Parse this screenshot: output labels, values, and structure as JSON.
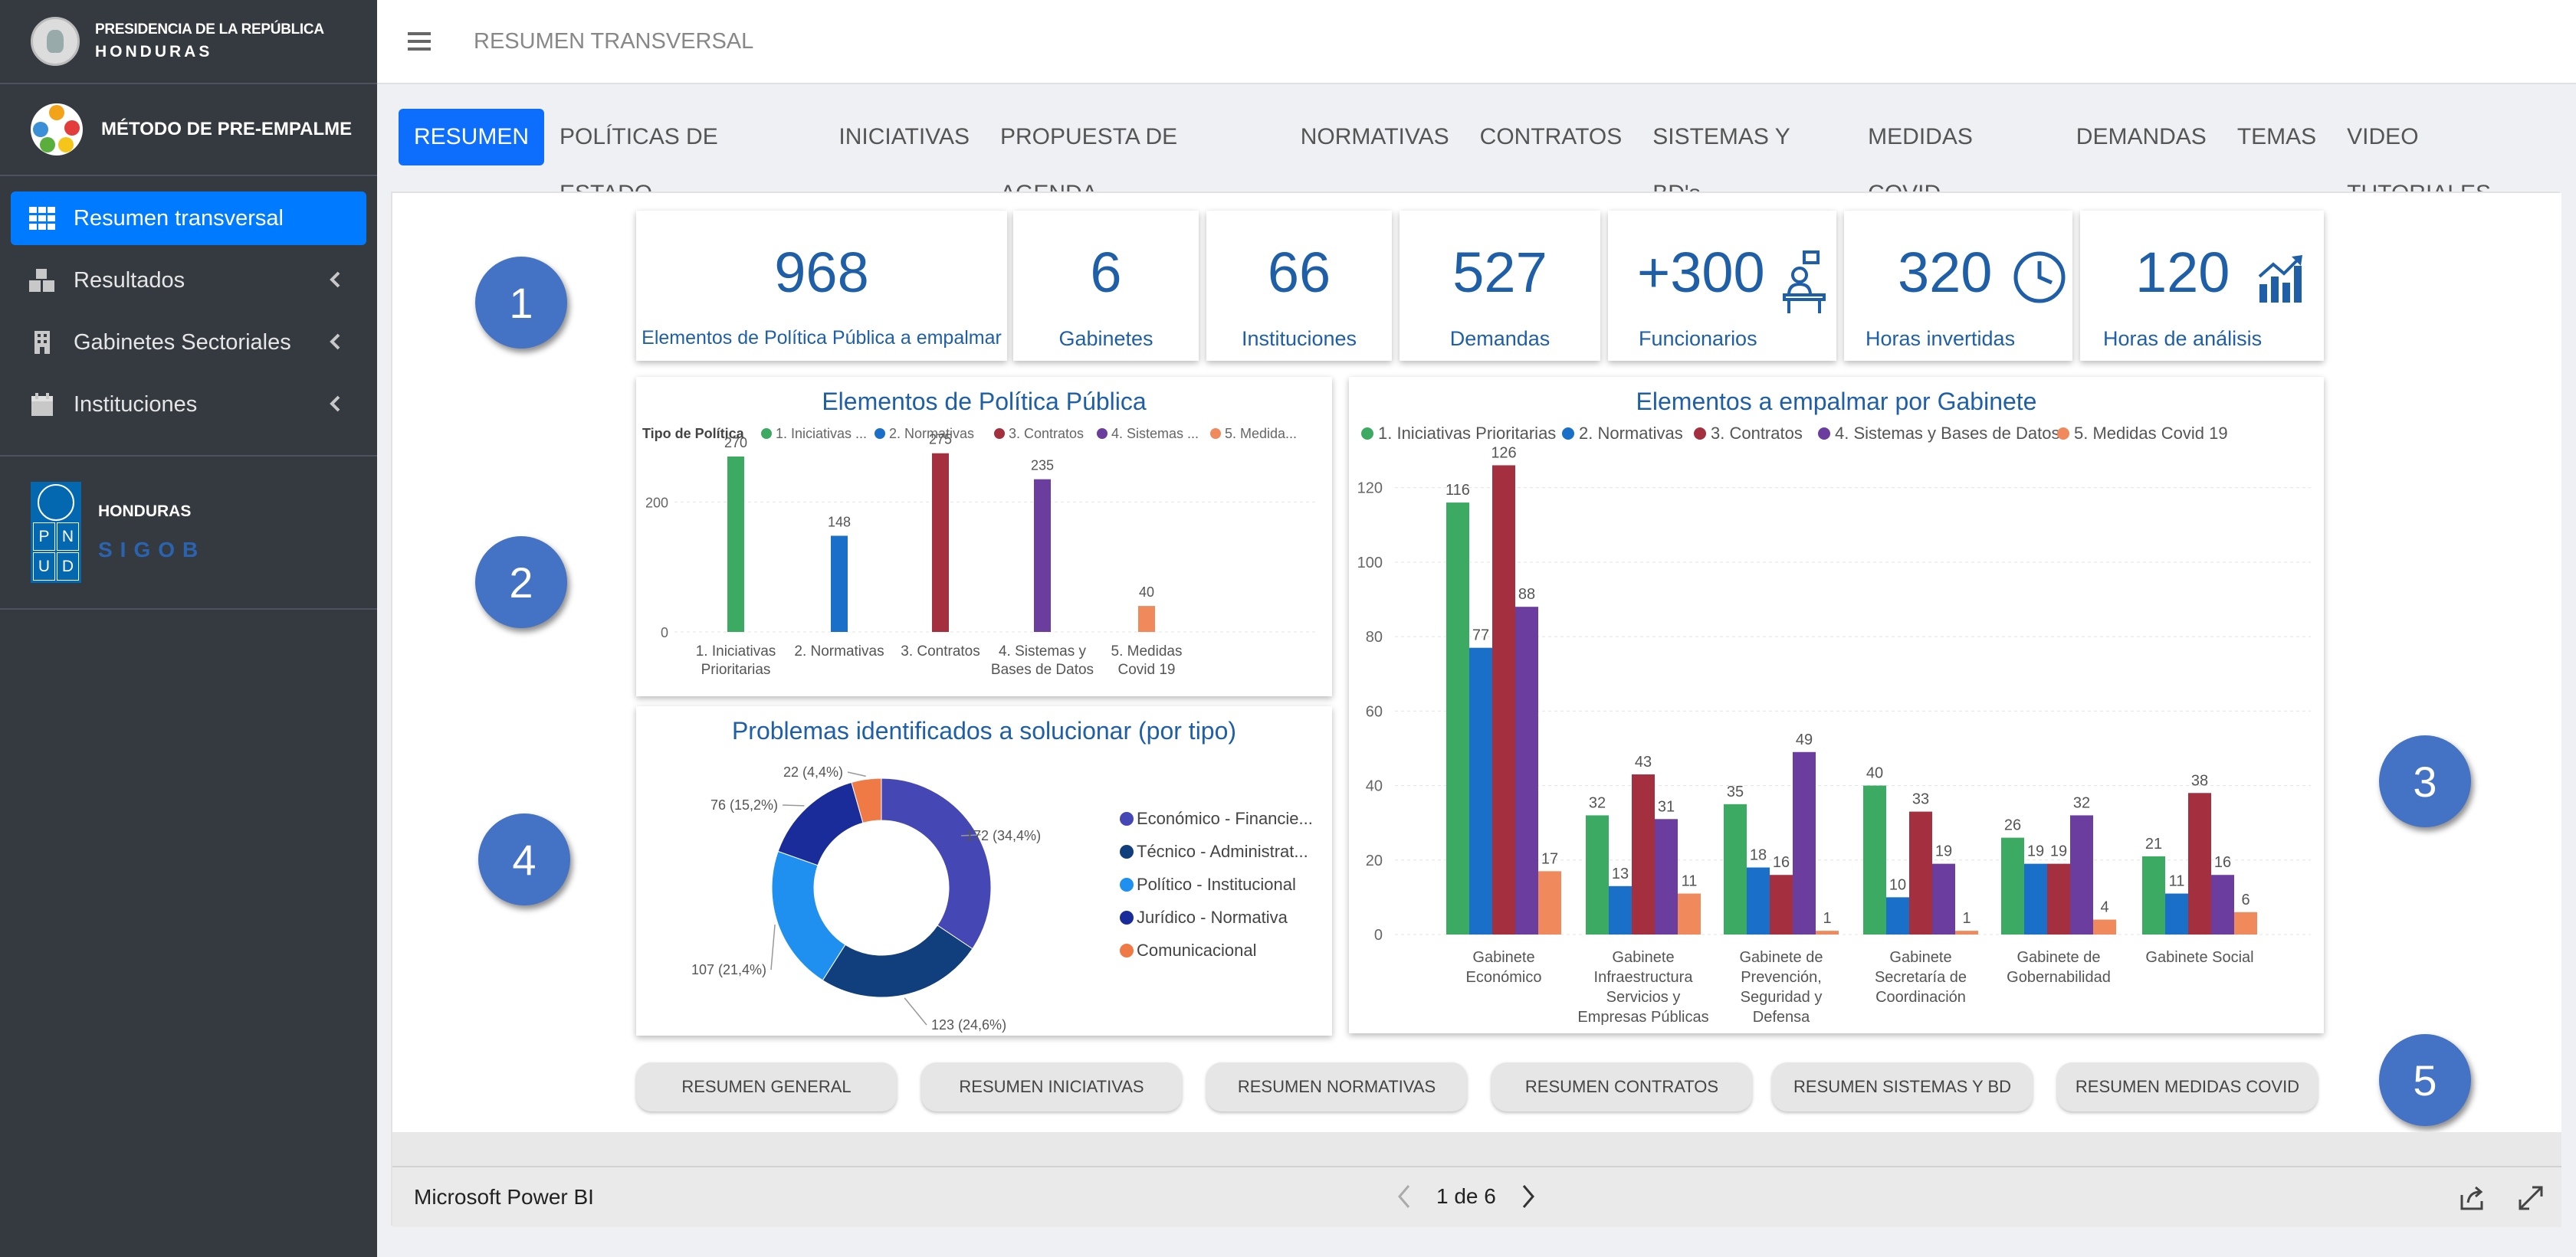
{
  "sidebar": {
    "brand_line1": "PRESIDENCIA DE LA REPÚBLICA",
    "brand_line2": "HONDURAS",
    "method_title": "MÉTODO DE PRE-EMPALME",
    "items": [
      {
        "label": "Resumen transversal"
      },
      {
        "label": "Resultados"
      },
      {
        "label": "Gabinetes Sectoriales"
      },
      {
        "label": "Instituciones"
      }
    ],
    "undp_country": "HONDURAS",
    "undp_sigob": "SIGOB",
    "undp_letters": [
      "P",
      "N",
      "U",
      "D"
    ]
  },
  "topbar": {
    "title": "RESUMEN TRANSVERSAL"
  },
  "tabs": [
    "RESUMEN",
    "POLÍTICAS DE ESTADO",
    "INICIATIVAS",
    "PROPUESTA DE AGENDA",
    "NORMATIVAS",
    "CONTRATOS",
    "SISTEMAS Y BD's",
    "MEDIDAS COVID",
    "DEMANDAS",
    "TEMAS",
    "VIDEO TUTORIALES"
  ],
  "kpis": [
    {
      "value": "968",
      "label": "Elementos de Política Pública a empalmar"
    },
    {
      "value": "6",
      "label": "Gabinetes"
    },
    {
      "value": "66",
      "label": "Instituciones"
    },
    {
      "value": "527",
      "label": "Demandas"
    },
    {
      "value": "+300",
      "label": "Funcionarios",
      "icon": "officials-icon"
    },
    {
      "value": "320",
      "label": "Horas invertidas",
      "icon": "clock-icon"
    },
    {
      "value": "120",
      "label": "Horas de análisis",
      "icon": "growth-chart-icon"
    }
  ],
  "markers": [
    "1",
    "2",
    "3",
    "4",
    "5"
  ],
  "colors": {
    "green": "#3daa63",
    "blue": "#1a6fc9",
    "red": "#a4303f",
    "purple": "#6a3d9e",
    "orange": "#f08a5d"
  },
  "chart_data": [
    {
      "type": "bar",
      "title": "Elementos de Política Pública",
      "legend_title": "Tipo de Política",
      "legend": [
        "1. Iniciativas ...",
        "2. Normativas",
        "3. Contratos",
        "4. Sistemas ...",
        "5. Medida..."
      ],
      "categories": [
        [
          "1. Iniciativas",
          "Prioritarias"
        ],
        [
          "2. Normativas"
        ],
        [
          "3. Contratos"
        ],
        [
          "4. Sistemas y",
          "Bases de Datos"
        ],
        [
          "5. Medidas",
          "Covid 19"
        ]
      ],
      "values": [
        270,
        148,
        275,
        235,
        40
      ],
      "yticks": [
        0,
        200
      ],
      "ylim": [
        0,
        290
      ],
      "grid": true,
      "legend_position": "top-left"
    },
    {
      "type": "bar",
      "title": "Elementos a empalmar por Gabinete",
      "categories": [
        [
          "Gabinete",
          "Económico"
        ],
        [
          "Gabinete",
          "Infraestructura",
          "Servicios y",
          "Empresas Públicas"
        ],
        [
          "Gabinete de",
          "Prevención,",
          "Seguridad y",
          "Defensa"
        ],
        [
          "Gabinete",
          "Secretaría de",
          "Coordinación"
        ],
        [
          "Gabinete de",
          "Gobernabilidad"
        ],
        [
          "Gabinete Social"
        ]
      ],
      "series": [
        {
          "name": "1. Iniciativas Prioritarias",
          "values": [
            116,
            32,
            35,
            40,
            26,
            21
          ]
        },
        {
          "name": "2. Normativas",
          "values": [
            77,
            13,
            18,
            10,
            19,
            11
          ]
        },
        {
          "name": "3. Contratos",
          "values": [
            126,
            43,
            16,
            33,
            19,
            38
          ]
        },
        {
          "name": "4. Sistemas y Bases de Datos",
          "values": [
            88,
            31,
            49,
            19,
            32,
            16
          ]
        },
        {
          "name": "5. Medidas Covid 19",
          "values": [
            17,
            11,
            1,
            1,
            4,
            6
          ]
        }
      ],
      "yticks": [
        0,
        20,
        40,
        60,
        80,
        100,
        120
      ],
      "ylim": [
        0,
        130
      ],
      "grid": true,
      "legend_position": "top-left"
    },
    {
      "type": "pie",
      "title": "Problemas identificados a solucionar (por tipo)",
      "labels": [
        "Económico - Financie...",
        "Técnico - Administrat...",
        "Político - Institucional",
        "Jurídico - Normativa",
        "Comunicacional"
      ],
      "values": [
        172,
        123,
        107,
        76,
        22
      ],
      "value_labels": [
        "172 (34,4%)",
        "123 (24,6%)",
        "107 (21,4%)",
        "76 (15,2%)",
        "22 (4,4%)"
      ],
      "colors": [
        "#4547b5",
        "#113e7c",
        "#1f90f0",
        "#1a2c9a",
        "#ef7a45"
      ],
      "legend_position": "right"
    }
  ],
  "summary_buttons": [
    "RESUMEN GENERAL",
    "RESUMEN INICIATIVAS",
    "RESUMEN NORMATIVAS",
    "RESUMEN CONTRATOS",
    "RESUMEN SISTEMAS Y BD",
    "RESUMEN MEDIDAS COVID"
  ],
  "footer": {
    "brand": "Microsoft Power BI",
    "pager": "1 de 6"
  }
}
